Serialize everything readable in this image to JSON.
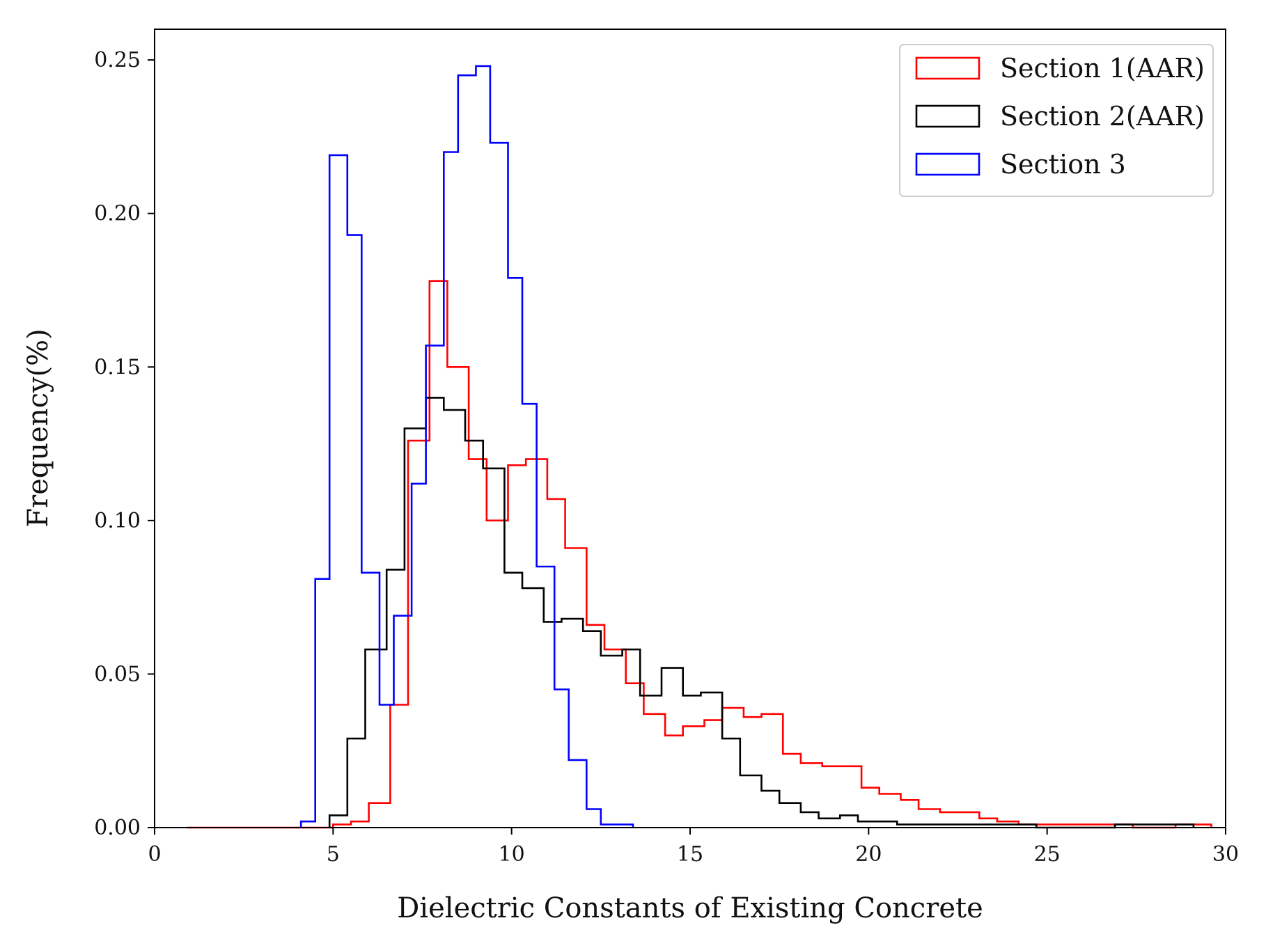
{
  "chart_data": {
    "type": "histogram",
    "title": "",
    "xlabel": "Dielectric Constants of Existing Concrete",
    "ylabel": "Frequency(%)",
    "xlim": [
      0,
      30
    ],
    "ylim": [
      0,
      0.26
    ],
    "xticks": [
      0,
      5,
      10,
      15,
      20,
      25,
      30
    ],
    "xtick_labels": [
      "0",
      "5",
      "10",
      "15",
      "20",
      "25",
      "30"
    ],
    "yticks": [
      0,
      0.05,
      0.1,
      0.15,
      0.2,
      0.25
    ],
    "ytick_labels": [
      "0.00",
      "0.05",
      "0.10",
      "0.15",
      "0.20",
      "0.25"
    ],
    "grid": false,
    "legend_position": "top-right",
    "series": [
      {
        "name": "Section 1(AAR)",
        "color": "#ff0000",
        "edges": [
          0.9,
          1.5,
          2.1,
          2.7,
          3.3,
          3.9,
          4.5,
          5.0,
          5.5,
          6.0,
          6.6,
          7.1,
          7.7,
          8.2,
          8.8,
          9.3,
          9.9,
          10.4,
          11.0,
          11.5,
          12.1,
          12.6,
          13.2,
          13.7,
          14.3,
          14.8,
          15.4,
          15.9,
          16.5,
          17.0,
          17.6,
          18.1,
          18.7,
          19.2,
          19.8,
          20.3,
          20.9,
          21.4,
          22.0,
          22.5,
          23.1,
          23.6,
          24.2,
          24.7,
          25.3,
          25.8,
          26.4,
          26.9,
          27.4,
          28.0,
          28.6,
          29.1,
          29.6
        ],
        "values": [
          0,
          0,
          0,
          0,
          0,
          0,
          0,
          0.001,
          0.002,
          0.008,
          0.04,
          0.126,
          0.178,
          0.15,
          0.12,
          0.1,
          0.118,
          0.12,
          0.107,
          0.091,
          0.066,
          0.058,
          0.047,
          0.037,
          0.03,
          0.033,
          0.035,
          0.039,
          0.036,
          0.037,
          0.024,
          0.021,
          0.02,
          0.02,
          0.013,
          0.011,
          0.009,
          0.006,
          0.005,
          0.005,
          0.003,
          0.002,
          0.001,
          0.001,
          0.001,
          0.001,
          0.001,
          0.001,
          0,
          0,
          0.001,
          0.001
        ]
      },
      {
        "name": "Section 2(AAR)",
        "color": "#000000",
        "edges": [
          4.9,
          5.4,
          5.9,
          6.5,
          7.0,
          7.6,
          8.1,
          8.7,
          9.2,
          9.8,
          10.3,
          10.9,
          11.4,
          12.0,
          12.5,
          13.1,
          13.6,
          14.2,
          14.8,
          15.3,
          15.9,
          16.4,
          17.0,
          17.5,
          18.1,
          18.6,
          19.2,
          19.7,
          20.3,
          20.8,
          21.4,
          21.9,
          22.5,
          23.0,
          23.6,
          24.1,
          24.7,
          25.3,
          25.8,
          26.4,
          26.9,
          27.5,
          28.0,
          28.6,
          29.1
        ],
        "values": [
          0.004,
          0.029,
          0.058,
          0.084,
          0.13,
          0.14,
          0.136,
          0.126,
          0.117,
          0.083,
          0.078,
          0.067,
          0.068,
          0.064,
          0.056,
          0.058,
          0.043,
          0.052,
          0.043,
          0.044,
          0.029,
          0.017,
          0.012,
          0.008,
          0.005,
          0.003,
          0.004,
          0.002,
          0.002,
          0.001,
          0.001,
          0.001,
          0.001,
          0.001,
          0.001,
          0.001,
          0,
          0,
          0,
          0,
          0.001,
          0.001,
          0.001,
          0.001
        ]
      },
      {
        "name": "Section 3",
        "color": "#0000ff",
        "edges": [
          4.1,
          4.5,
          4.9,
          5.4,
          5.8,
          6.3,
          6.7,
          7.2,
          7.6,
          8.1,
          8.5,
          9.0,
          9.4,
          9.9,
          10.3,
          10.7,
          11.2,
          11.6,
          12.1,
          12.5,
          13.0,
          13.4
        ],
        "values": [
          0.002,
          0.081,
          0.219,
          0.193,
          0.083,
          0.04,
          0.069,
          0.112,
          0.157,
          0.22,
          0.245,
          0.248,
          0.223,
          0.179,
          0.138,
          0.085,
          0.045,
          0.022,
          0.006,
          0.001,
          0.001
        ]
      }
    ]
  }
}
